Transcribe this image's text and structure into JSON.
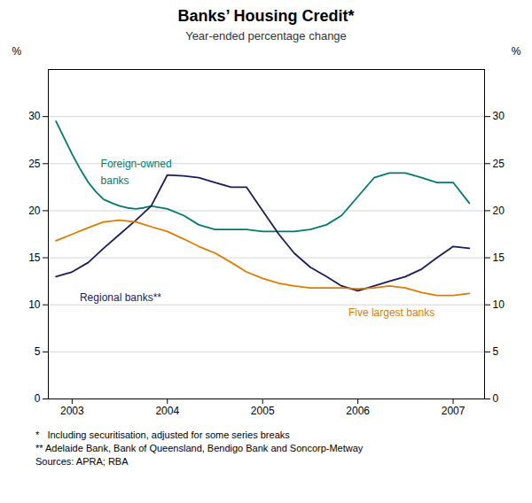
{
  "chart_data": {
    "type": "line",
    "title": "Banks’ Housing Credit*",
    "subtitle": "Year-ended percentage change",
    "ylabel": "%",
    "y2label": "%",
    "xlim": [
      2002.75,
      2007.33
    ],
    "xticks": [
      2003,
      2004,
      2005,
      2006,
      2007
    ],
    "ylim": [
      0,
      35
    ],
    "yticks": [
      0,
      5,
      10,
      15,
      20,
      25,
      30
    ],
    "y2lim": [
      0,
      35
    ],
    "y2ticks": [
      0,
      5,
      10,
      15,
      20,
      25,
      30
    ],
    "grid": true,
    "series": [
      {
        "color": "#007A6E",
        "x": [
          2002.83,
          2003.0,
          2003.08,
          2003.17,
          2003.25,
          2003.33,
          2003.42,
          2003.5,
          2003.58,
          2003.67,
          2003.75,
          2003.83,
          2004.0,
          2004.17,
          2004.33,
          2004.5,
          2004.67,
          2004.83,
          2005.0,
          2005.17,
          2005.33,
          2005.5,
          2005.67,
          2005.83,
          2006.0,
          2006.17,
          2006.33,
          2006.5,
          2006.67,
          2006.83,
          2007.0,
          2007.17
        ],
        "values": [
          29.5,
          26.0,
          24.5,
          23.0,
          22.0,
          21.2,
          20.8,
          20.5,
          20.3,
          20.2,
          20.3,
          20.5,
          20.2,
          19.5,
          18.5,
          18.0,
          18.0,
          18.0,
          17.8,
          17.8,
          17.8,
          18.0,
          18.5,
          19.5,
          21.5,
          23.5,
          24.0,
          24.0,
          23.5,
          23.0,
          23.0,
          20.8
        ]
      },
      {
        "color": "#1B1B5E",
        "x": [
          2002.83,
          2003.0,
          2003.17,
          2003.33,
          2003.5,
          2003.67,
          2003.83,
          2004.0,
          2004.17,
          2004.33,
          2004.5,
          2004.67,
          2004.83,
          2005.0,
          2005.17,
          2005.33,
          2005.5,
          2005.67,
          2005.83,
          2006.0,
          2006.17,
          2006.33,
          2006.5,
          2006.67,
          2006.83,
          2007.0,
          2007.17
        ],
        "values": [
          13.0,
          13.5,
          14.5,
          16.0,
          17.5,
          19.0,
          20.5,
          23.8,
          23.7,
          23.5,
          23.0,
          22.5,
          22.5,
          20.0,
          17.5,
          15.5,
          14.0,
          13.0,
          12.0,
          11.5,
          12.0,
          12.5,
          13.0,
          13.8,
          15.0,
          16.2,
          16.0
        ]
      },
      {
        "color": "#E07B00",
        "x": [
          2002.83,
          2003.0,
          2003.17,
          2003.33,
          2003.5,
          2003.67,
          2003.83,
          2004.0,
          2004.17,
          2004.33,
          2004.5,
          2004.67,
          2004.83,
          2005.0,
          2005.17,
          2005.33,
          2005.5,
          2005.67,
          2005.83,
          2006.0,
          2006.17,
          2006.33,
          2006.5,
          2006.67,
          2006.83,
          2007.0,
          2007.17
        ],
        "values": [
          16.8,
          17.5,
          18.2,
          18.8,
          19.0,
          18.8,
          18.3,
          17.8,
          17.0,
          16.2,
          15.5,
          14.5,
          13.5,
          12.8,
          12.3,
          12.0,
          11.8,
          11.8,
          11.8,
          11.7,
          11.8,
          12.0,
          11.8,
          11.3,
          11.0,
          11.0,
          11.2
        ]
      }
    ],
    "annotations": [
      {
        "text": "Foreign-owned",
        "x": 2003.3,
        "y": 25.0,
        "color": "#007A6E"
      },
      {
        "text": "banks",
        "x": 2003.3,
        "y": 23.2,
        "color": "#007A6E"
      },
      {
        "text": "Regional banks**",
        "x": 2003.08,
        "y": 10.8,
        "color": "#1B1B5E"
      },
      {
        "text": "Five largest banks",
        "x": 2005.9,
        "y": 9.2,
        "color": "#E07B00"
      }
    ],
    "footnotes": [
      "*   Including securitisation, adjusted for some series breaks",
      "** Adelaide Bank, Bank of Queensland, Bendigo Bank and Soncorp-Metway",
      "Sources: APRA; RBA"
    ]
  }
}
